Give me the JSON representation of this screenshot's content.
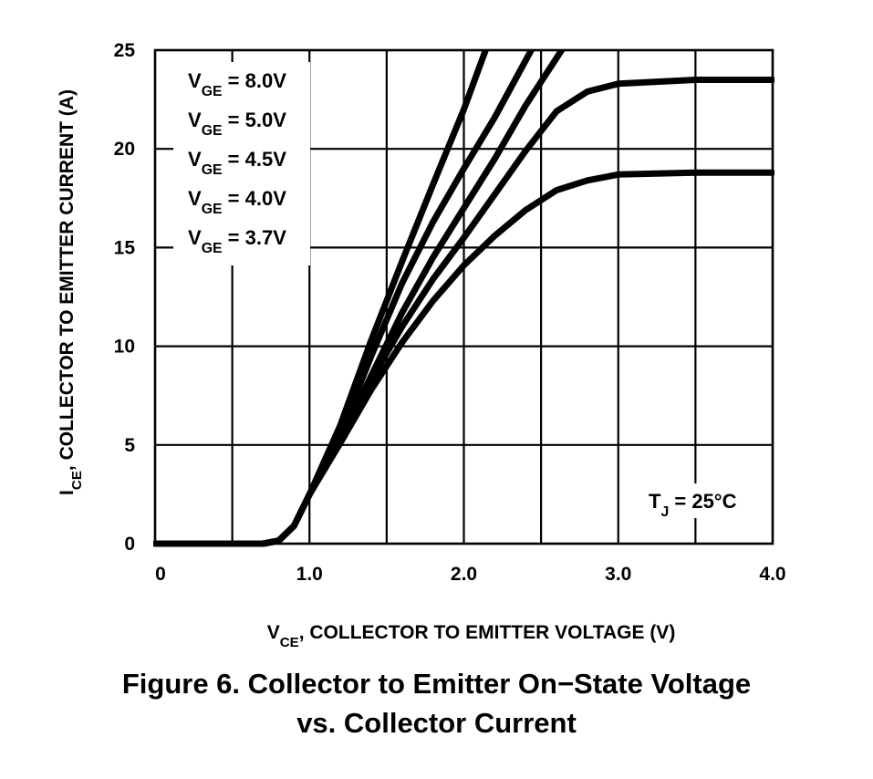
{
  "chart_data": {
    "type": "line",
    "x_unit_label": "COLLECTOR TO EMITTER VOLTAGE (V)",
    "x_symbol": {
      "main": "V",
      "sub": "CE"
    },
    "y_unit_label": "COLLECTOR TO EMITTER CURRENT (A)",
    "y_symbol": {
      "main": "I",
      "sub": "CE"
    },
    "xlim": [
      0,
      4.0
    ],
    "ylim": [
      0,
      25
    ],
    "x_ticks": [
      {
        "value": 0,
        "label": "0"
      },
      {
        "value": 1.0,
        "label": "1.0"
      },
      {
        "value": 2.0,
        "label": "2.0"
      },
      {
        "value": 3.0,
        "label": "3.0"
      },
      {
        "value": 4.0,
        "label": "4.0"
      }
    ],
    "y_ticks": [
      {
        "value": 0,
        "label": "0"
      },
      {
        "value": 5,
        "label": "5"
      },
      {
        "value": 10,
        "label": "10"
      },
      {
        "value": 15,
        "label": "15"
      },
      {
        "value": 20,
        "label": "20"
      },
      {
        "value": 25,
        "label": "25"
      }
    ],
    "grid": true,
    "legend_position": "top-left",
    "series": [
      {
        "sym": "V",
        "sub": "GE",
        "rest": " = 8.0V",
        "points": [
          [
            0,
            0
          ],
          [
            0.7,
            0
          ],
          [
            0.8,
            0.15
          ],
          [
            0.9,
            0.9
          ],
          [
            1.0,
            2.5
          ],
          [
            1.2,
            6.0
          ],
          [
            1.4,
            10.3
          ],
          [
            1.6,
            14.3
          ],
          [
            1.8,
            18.2
          ],
          [
            2.0,
            22.0
          ],
          [
            2.15,
            25.2
          ]
        ]
      },
      {
        "sym": "V",
        "sub": "GE",
        "rest": " = 5.0V",
        "points": [
          [
            0,
            0
          ],
          [
            0.7,
            0
          ],
          [
            0.8,
            0.15
          ],
          [
            0.9,
            0.9
          ],
          [
            1.0,
            2.5
          ],
          [
            1.2,
            5.6
          ],
          [
            1.4,
            9.5
          ],
          [
            1.6,
            13.2
          ],
          [
            1.8,
            16.3
          ],
          [
            2.0,
            19.0
          ],
          [
            2.2,
            21.6
          ],
          [
            2.45,
            25.2
          ]
        ]
      },
      {
        "sym": "V",
        "sub": "GE",
        "rest": " = 4.5V",
        "points": [
          [
            0,
            0
          ],
          [
            0.7,
            0
          ],
          [
            0.8,
            0.15
          ],
          [
            0.9,
            0.9
          ],
          [
            1.0,
            2.5
          ],
          [
            1.2,
            5.3
          ],
          [
            1.4,
            8.5
          ],
          [
            1.6,
            11.7
          ],
          [
            1.8,
            14.5
          ],
          [
            2.0,
            17.0
          ],
          [
            2.2,
            19.5
          ],
          [
            2.4,
            22.2
          ],
          [
            2.65,
            25.2
          ]
        ]
      },
      {
        "sym": "V",
        "sub": "GE",
        "rest": " = 4.0V",
        "points": [
          [
            0,
            0
          ],
          [
            0.7,
            0
          ],
          [
            0.8,
            0.15
          ],
          [
            0.9,
            0.9
          ],
          [
            1.0,
            2.5
          ],
          [
            1.2,
            5.2
          ],
          [
            1.4,
            8.3
          ],
          [
            1.6,
            11.0
          ],
          [
            1.8,
            13.4
          ],
          [
            2.0,
            15.5
          ],
          [
            2.2,
            17.7
          ],
          [
            2.4,
            19.9
          ],
          [
            2.6,
            21.9
          ],
          [
            2.8,
            22.9
          ],
          [
            3.0,
            23.3
          ],
          [
            3.5,
            23.5
          ],
          [
            4.0,
            23.5
          ]
        ]
      },
      {
        "sym": "V",
        "sub": "GE",
        "rest": " = 3.7V",
        "points": [
          [
            0,
            0
          ],
          [
            0.7,
            0
          ],
          [
            0.8,
            0.15
          ],
          [
            0.9,
            0.9
          ],
          [
            1.0,
            2.5
          ],
          [
            1.2,
            5.1
          ],
          [
            1.4,
            7.8
          ],
          [
            1.6,
            10.2
          ],
          [
            1.8,
            12.3
          ],
          [
            2.0,
            14.1
          ],
          [
            2.2,
            15.6
          ],
          [
            2.4,
            16.9
          ],
          [
            2.6,
            17.9
          ],
          [
            2.8,
            18.4
          ],
          [
            3.0,
            18.7
          ],
          [
            3.5,
            18.8
          ],
          [
            4.0,
            18.8
          ]
        ]
      }
    ],
    "annotation": {
      "sym": "T",
      "sub": "J",
      "rest": " = 25°C"
    }
  },
  "caption": {
    "line1": "Figure 6. Collector to Emitter On−State Voltage",
    "line2": "vs. Collector Current"
  }
}
